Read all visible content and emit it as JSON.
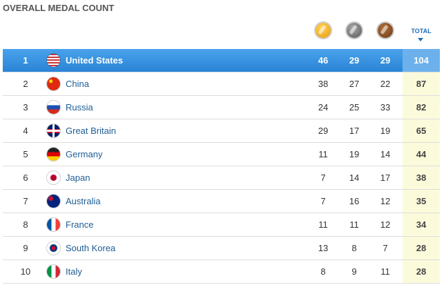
{
  "header": {
    "title": "OVERALL MEDAL COUNT",
    "total_label": "TOTAL"
  },
  "table": {
    "rows": [
      {
        "rank": 1,
        "country": "United States",
        "gold": 46,
        "silver": 29,
        "bronze": 29,
        "total": 104
      },
      {
        "rank": 2,
        "country": "China",
        "gold": 38,
        "silver": 27,
        "bronze": 22,
        "total": 87
      },
      {
        "rank": 3,
        "country": "Russia",
        "gold": 24,
        "silver": 25,
        "bronze": 33,
        "total": 82
      },
      {
        "rank": 4,
        "country": "Great Britain",
        "gold": 29,
        "silver": 17,
        "bronze": 19,
        "total": 65
      },
      {
        "rank": 5,
        "country": "Germany",
        "gold": 11,
        "silver": 19,
        "bronze": 14,
        "total": 44
      },
      {
        "rank": 6,
        "country": "Japan",
        "gold": 7,
        "silver": 14,
        "bronze": 17,
        "total": 38
      },
      {
        "rank": 7,
        "country": "Australia",
        "gold": 7,
        "silver": 16,
        "bronze": 12,
        "total": 35
      },
      {
        "rank": 8,
        "country": "France",
        "gold": 11,
        "silver": 11,
        "bronze": 12,
        "total": 34
      },
      {
        "rank": 9,
        "country": "South Korea",
        "gold": 13,
        "silver": 8,
        "bronze": 7,
        "total": 28
      },
      {
        "rank": 10,
        "country": "Italy",
        "gold": 8,
        "silver": 9,
        "bronze": 11,
        "total": 28
      }
    ]
  }
}
